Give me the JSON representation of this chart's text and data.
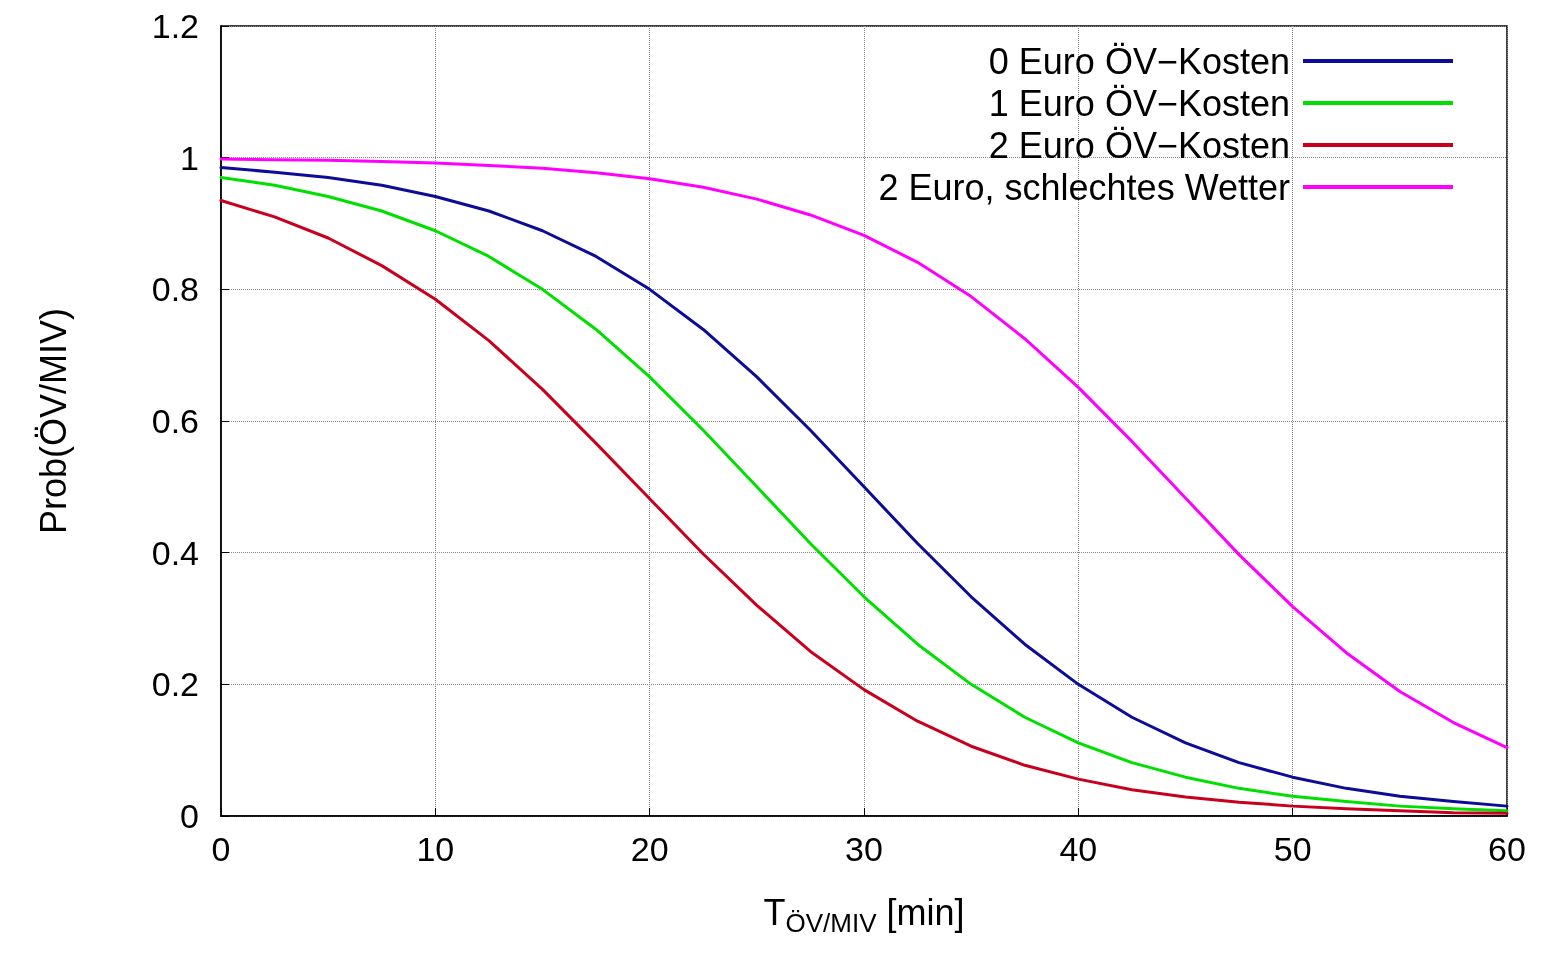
{
  "chart_data": {
    "type": "line",
    "xlabel": "T$_{ÖV/MIV}$ [min]",
    "ylabel": "Prob(ÖV/MIV)",
    "x": [
      0,
      2.5,
      5,
      7.5,
      10,
      12.5,
      15,
      17.5,
      20,
      22.5,
      25,
      27.5,
      30,
      32.5,
      35,
      37.5,
      40,
      42.5,
      45,
      47.5,
      50,
      52.5,
      55,
      57.5,
      60
    ],
    "series": [
      {
        "name": "0 Euro ÖV−Kosten",
        "color": "#0c0c96",
        "values": [
          0.985,
          0.978,
          0.97,
          0.958,
          0.941,
          0.919,
          0.889,
          0.85,
          0.8,
          0.739,
          0.667,
          0.586,
          0.5,
          0.414,
          0.333,
          0.261,
          0.2,
          0.15,
          0.111,
          0.081,
          0.059,
          0.042,
          0.03,
          0.022,
          0.015
        ]
      },
      {
        "name": "1 Euro ÖV−Kosten",
        "color": "#00e000",
        "values": [
          0.97,
          0.958,
          0.941,
          0.919,
          0.889,
          0.85,
          0.8,
          0.739,
          0.667,
          0.586,
          0.5,
          0.414,
          0.333,
          0.261,
          0.2,
          0.15,
          0.111,
          0.081,
          0.059,
          0.042,
          0.03,
          0.022,
          0.015,
          0.011,
          0.008
        ]
      },
      {
        "name": "2 Euro ÖV−Kosten",
        "color": "#c8001e",
        "values": [
          0.935,
          0.91,
          0.878,
          0.836,
          0.785,
          0.722,
          0.648,
          0.566,
          0.482,
          0.398,
          0.32,
          0.25,
          0.192,
          0.144,
          0.106,
          0.077,
          0.056,
          0.04,
          0.029,
          0.021,
          0.015,
          0.011,
          0.008,
          0.005,
          0.004
        ]
      },
      {
        "name": "2 Euro, schlechtes Wetter",
        "color": "#ff00ff",
        "values": [
          0.998,
          0.997,
          0.996,
          0.994,
          0.992,
          0.988,
          0.984,
          0.977,
          0.968,
          0.955,
          0.937,
          0.913,
          0.882,
          0.841,
          0.789,
          0.725,
          0.651,
          0.569,
          0.483,
          0.397,
          0.318,
          0.248,
          0.189,
          0.142,
          0.104
        ]
      }
    ],
    "xlim": [
      0,
      60
    ],
    "xticks": [
      0,
      10,
      20,
      30,
      40,
      50,
      60
    ],
    "ylim": [
      0,
      1.2
    ],
    "yticks": [
      0,
      0.2,
      0.4,
      0.6,
      0.8,
      1,
      1.2
    ],
    "grid": true,
    "legend": "top right",
    "marker": "none",
    "line_style": "solid"
  }
}
